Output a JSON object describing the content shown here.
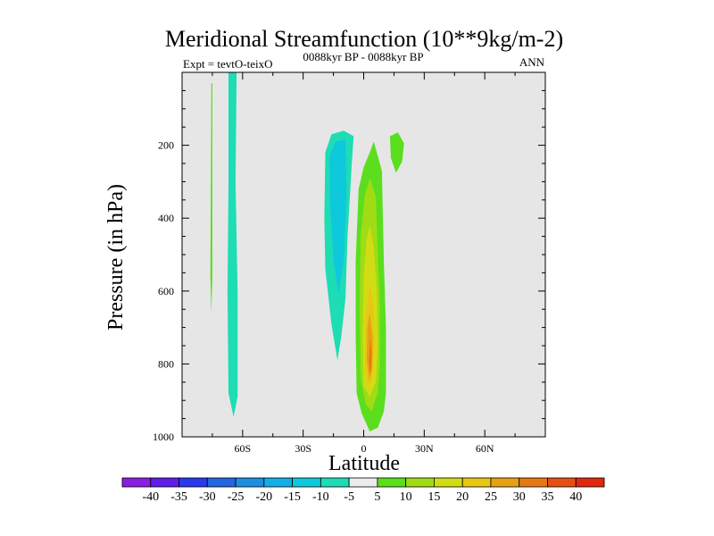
{
  "chart_data": {
    "type": "heatmap",
    "title": "Meridional Streamfunction (10**9kg/m-2)",
    "subtitle_left": "Expt = tevtO-teixO",
    "subtitle_center": "0088kyr BP - 0088kyr BP",
    "subtitle_right": "ANN",
    "xlabel": "Latitude",
    "ylabel": "Pressure (in hPa)",
    "xlim": [
      -90,
      90
    ],
    "ylim": [
      1000,
      0
    ],
    "xticks": [
      {
        "value": -60,
        "label": "60S"
      },
      {
        "value": -30,
        "label": "30S"
      },
      {
        "value": 0,
        "label": "0"
      },
      {
        "value": 30,
        "label": "30N"
      },
      {
        "value": 60,
        "label": "60N"
      }
    ],
    "yticks": [
      {
        "value": 200,
        "label": "200"
      },
      {
        "value": 400,
        "label": "400"
      },
      {
        "value": 600,
        "label": "600"
      },
      {
        "value": 800,
        "label": "800"
      },
      {
        "value": 1000,
        "label": "1000"
      }
    ],
    "missing_color": "#e6e6e6",
    "colorbar": {
      "labels": [
        "-40",
        "-35",
        "-30",
        "-25",
        "-20",
        "-15",
        "-10",
        "-5",
        "5",
        "10",
        "15",
        "20",
        "25",
        "30",
        "35",
        "40"
      ],
      "colors": [
        "#8a1ee0",
        "#5e1ee6",
        "#2a3ae8",
        "#2466e0",
        "#1e8ee0",
        "#14aee6",
        "#0ec8dc",
        "#1edcb4",
        "#ececec",
        "#5ade1e",
        "#a0dc14",
        "#d2dc14",
        "#e6c814",
        "#e6a014",
        "#e67814",
        "#e64e14",
        "#e0280e"
      ]
    },
    "regions": [
      {
        "name": "sh-high-lat-thin-band",
        "level": "5 to 10",
        "color": "#5ade1e",
        "outline": [
          [
            -75.5,
            30
          ],
          [
            -75.0,
            30
          ],
          [
            -75.0,
            560
          ],
          [
            -75.5,
            660
          ],
          [
            -76.0,
            560
          ]
        ]
      },
      {
        "name": "sh-high-lat-negative-band",
        "level": "-10 to -5",
        "color": "#1edcb4",
        "outline": [
          [
            -67,
            0
          ],
          [
            -63,
            0
          ],
          [
            -63.5,
            300
          ],
          [
            -62.5,
            600
          ],
          [
            -62.5,
            890
          ],
          [
            -64.5,
            945
          ],
          [
            -67,
            880
          ],
          [
            -67.5,
            600
          ],
          [
            -67,
            300
          ]
        ]
      },
      {
        "name": "tropical-negative-cell",
        "level": "-10 to -5",
        "color": "#1edcb4",
        "outline": [
          [
            -19,
            220
          ],
          [
            -16,
            170
          ],
          [
            -10,
            160
          ],
          [
            -5,
            175
          ],
          [
            -6,
            260
          ],
          [
            -8,
            450
          ],
          [
            -9,
            620
          ],
          [
            -11,
            720
          ],
          [
            -13,
            790
          ],
          [
            -16,
            690
          ],
          [
            -19,
            540
          ],
          [
            -19.5,
            400
          ]
        ]
      },
      {
        "name": "tropical-negative-core",
        "level": "-15 to -10",
        "color": "#0ec8dc",
        "outline": [
          [
            -17,
            230
          ],
          [
            -14,
            190
          ],
          [
            -9,
            185
          ],
          [
            -8.5,
            340
          ],
          [
            -10,
            520
          ],
          [
            -12.5,
            610
          ],
          [
            -15,
            510
          ],
          [
            -16.5,
            380
          ]
        ]
      },
      {
        "name": "nh-upper-positive-blob",
        "level": "5 to 10",
        "color": "#5ade1e",
        "outline": [
          [
            13,
            175
          ],
          [
            17,
            165
          ],
          [
            20,
            195
          ],
          [
            19,
            245
          ],
          [
            16,
            275
          ],
          [
            13.5,
            235
          ]
        ]
      },
      {
        "name": "tropical-positive-cell",
        "level": "5 to 10",
        "color": "#5ade1e",
        "outline": [
          [
            5,
            190
          ],
          [
            9,
            270
          ],
          [
            10,
            520
          ],
          [
            11,
            700
          ],
          [
            11,
            880
          ],
          [
            10,
            930
          ],
          [
            7,
            975
          ],
          [
            3,
            985
          ],
          [
            -1,
            935
          ],
          [
            -3.5,
            880
          ],
          [
            -4,
            720
          ],
          [
            -4,
            520
          ],
          [
            -2.5,
            320
          ],
          [
            0,
            260
          ],
          [
            3,
            220
          ]
        ]
      },
      {
        "name": "tropical-positive-10",
        "level": "10 to 15",
        "color": "#a0dc14",
        "outline": [
          [
            3,
            290
          ],
          [
            6,
            340
          ],
          [
            7,
            500
          ],
          [
            8,
            640
          ],
          [
            8,
            800
          ],
          [
            7,
            880
          ],
          [
            4,
            930
          ],
          [
            1,
            910
          ],
          [
            -1.5,
            840
          ],
          [
            -2,
            640
          ],
          [
            -1.5,
            450
          ],
          [
            0.5,
            340
          ]
        ]
      },
      {
        "name": "tropical-positive-15",
        "level": "15 to 20",
        "color": "#d2dc14",
        "outline": [
          [
            3,
            420
          ],
          [
            5,
            480
          ],
          [
            6.5,
            600
          ],
          [
            7,
            750
          ],
          [
            6,
            850
          ],
          [
            3,
            890
          ],
          [
            0,
            860
          ],
          [
            -0.5,
            720
          ],
          [
            0,
            560
          ],
          [
            1.5,
            460
          ]
        ]
      },
      {
        "name": "tropical-positive-20",
        "level": "20 to 25",
        "color": "#e6c814",
        "outline": [
          [
            3,
            580
          ],
          [
            5,
            640
          ],
          [
            5.5,
            760
          ],
          [
            4.5,
            840
          ],
          [
            2,
            860
          ],
          [
            0.5,
            800
          ],
          [
            0.8,
            680
          ]
        ]
      },
      {
        "name": "tropical-positive-25",
        "level": "25 to 30",
        "color": "#e6a014",
        "outline": [
          [
            3,
            660
          ],
          [
            4.5,
            730
          ],
          [
            4.2,
            810
          ],
          [
            2.8,
            845
          ],
          [
            1.5,
            790
          ],
          [
            1.8,
            700
          ]
        ]
      },
      {
        "name": "tropical-positive-30",
        "level": "30 to 35",
        "color": "#e67814",
        "outline": [
          [
            3.2,
            730
          ],
          [
            4.0,
            770
          ],
          [
            3.5,
            830
          ],
          [
            2.6,
            800
          ]
        ]
      }
    ]
  }
}
